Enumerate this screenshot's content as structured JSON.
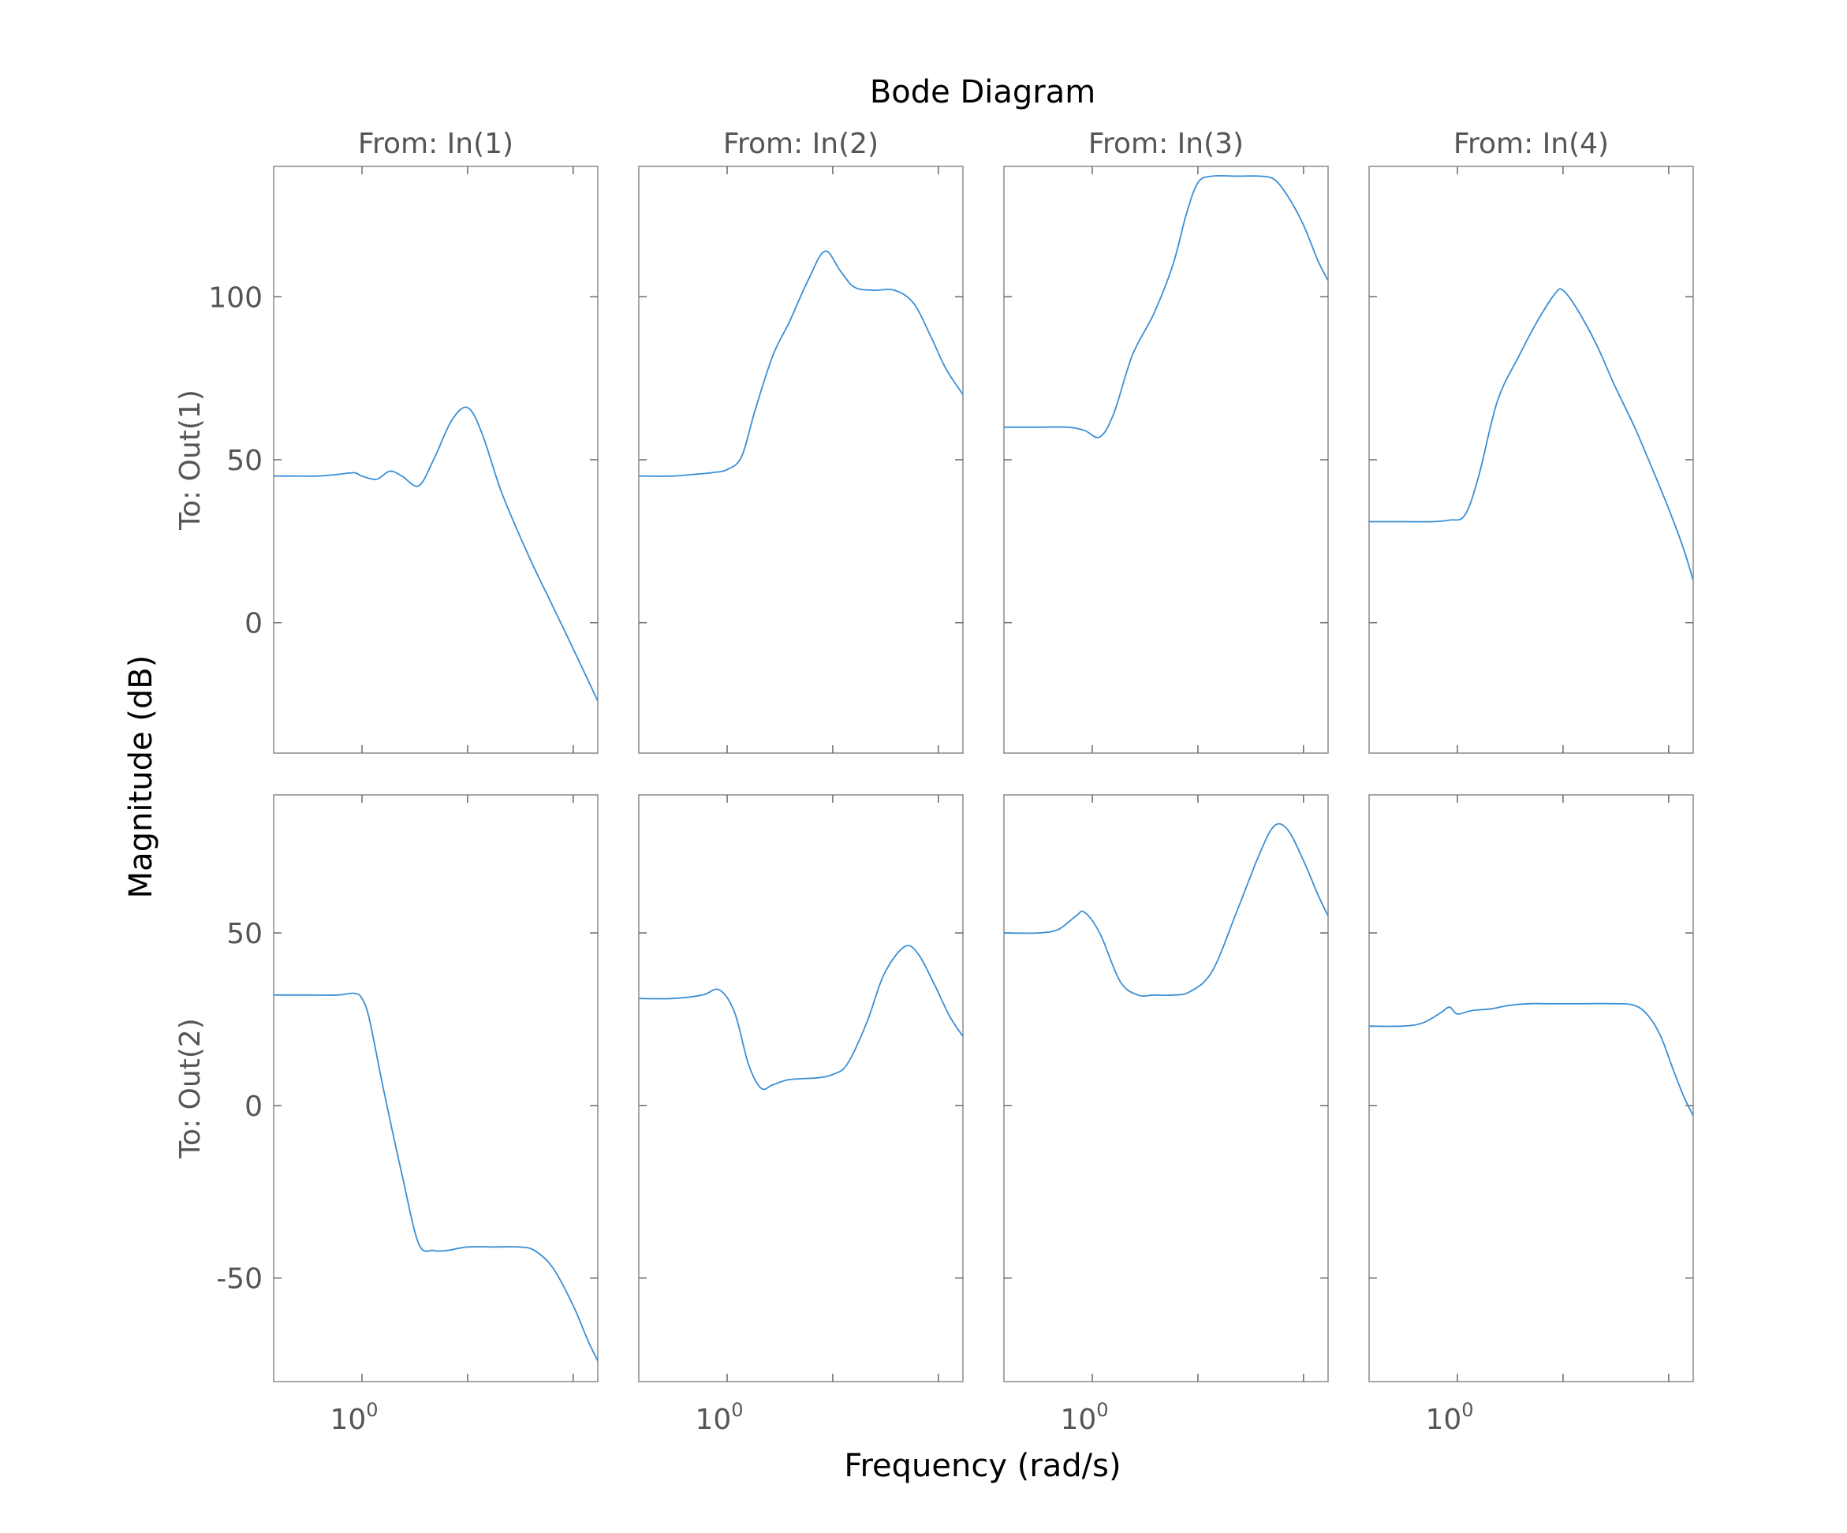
{
  "chart_data": {
    "type": "line",
    "title": "Bode Diagram",
    "xlabel": "Frequency  (rad/s)",
    "ylabel": "Magnitude (dB)",
    "xscale": "log",
    "xlim": [
      0.56,
      4.7
    ],
    "x_tick_label": {
      "base": "10",
      "exponent": "0"
    },
    "line_color": "#3a8fd6",
    "column_titles": [
      "From: In(1)",
      "From: In(2)",
      "From: In(3)",
      "From: In(4)"
    ],
    "row_labels": [
      "To: Out(1)",
      "To: Out(2)"
    ],
    "rows": [
      {
        "ylim": [
          -40,
          140
        ],
        "yticks": [
          0,
          50,
          100
        ],
        "ytick_labels": [
          "0",
          "50",
          "100"
        ],
        "series": [
          {
            "name": "In(1) to Out(1)",
            "x": [
              0.56,
              0.65,
              0.75,
              0.85,
              0.95,
              1.0,
              1.1,
              1.2,
              1.3,
              1.45,
              1.6,
              1.8,
              2.0,
              2.2,
              2.5,
              3.0,
              3.5,
              4.0,
              4.7
            ],
            "y": [
              45,
              45,
              45,
              45.5,
              46,
              45,
              44,
              46.5,
              45,
              42,
              50,
              62,
              66,
              58,
              40,
              20,
              5,
              -8,
              -24
            ]
          },
          {
            "name": "In(2) to Out(1)",
            "x": [
              0.56,
              0.7,
              0.8,
              0.9,
              1.0,
              1.1,
              1.2,
              1.35,
              1.5,
              1.7,
              1.9,
              2.1,
              2.3,
              2.6,
              3.0,
              3.4,
              3.8,
              4.2,
              4.7
            ],
            "y": [
              45,
              45,
              45.5,
              46,
              47,
              51,
              65,
              82,
              92,
              105,
              114,
              108,
              103,
              102,
              102,
              98,
              88,
              78,
              70
            ]
          },
          {
            "name": "In(3) to Out(1)",
            "x": [
              0.56,
              0.7,
              0.85,
              0.95,
              1.05,
              1.15,
              1.3,
              1.5,
              1.7,
              1.85,
              2.0,
              2.2,
              2.6,
              3.0,
              3.3,
              3.6,
              4.0,
              4.4,
              4.7
            ],
            "y": [
              60,
              60,
              60,
              59,
              57,
              64,
              82,
              95,
              110,
              125,
              135,
              137,
              137,
              137,
              136,
              131,
              122,
              111,
              105
            ]
          },
          {
            "name": "In(4) to Out(1)",
            "x": [
              0.56,
              0.7,
              0.85,
              0.95,
              1.05,
              1.15,
              1.3,
              1.5,
              1.7,
              1.9,
              2.0,
              2.2,
              2.5,
              2.8,
              3.2,
              3.6,
              4.0,
              4.4,
              4.7
            ],
            "y": [
              31,
              31,
              31,
              31.5,
              33,
              45,
              68,
              82,
              93,
              101,
              102,
              96,
              85,
              73,
              60,
              47,
              35,
              23,
              13
            ]
          }
        ]
      },
      {
        "ylim": [
          -80,
          90
        ],
        "yticks": [
          -50,
          0,
          50
        ],
        "ytick_labels": [
          "-50",
          "0",
          "50"
        ],
        "series": [
          {
            "name": "In(1) to Out(2)",
            "x": [
              0.56,
              0.7,
              0.85,
              0.95,
              1.0,
              1.05,
              1.15,
              1.3,
              1.45,
              1.6,
              1.75,
              2.0,
              2.4,
              2.8,
              3.1,
              3.5,
              4.0,
              4.4,
              4.7
            ],
            "y": [
              32,
              32,
              32,
              32.5,
              31,
              25,
              5,
              -20,
              -40,
              -42,
              -42,
              -41,
              -41,
              -41,
              -42,
              -47,
              -58,
              -68,
              -74
            ]
          },
          {
            "name": "In(2) to Out(2)",
            "x": [
              0.56,
              0.7,
              0.85,
              0.95,
              1.05,
              1.15,
              1.25,
              1.35,
              1.5,
              1.8,
              2.0,
              2.2,
              2.5,
              2.8,
              3.2,
              3.5,
              3.9,
              4.3,
              4.7
            ],
            "y": [
              31,
              31,
              32,
              33.5,
              27,
              12,
              5,
              6,
              7.5,
              8,
              9,
              12,
              24,
              38,
              46,
              44,
              35,
              26,
              20
            ]
          },
          {
            "name": "In(3) to Out(2)",
            "x": [
              0.56,
              0.7,
              0.8,
              0.9,
              0.95,
              1.05,
              1.2,
              1.35,
              1.5,
              1.7,
              1.9,
              2.2,
              2.6,
              3.0,
              3.3,
              3.6,
              4.0,
              4.4,
              4.7
            ],
            "y": [
              50,
              50,
              51,
              55,
              56,
              50,
              36,
              32,
              32,
              32,
              33,
              39,
              57,
              73,
              81,
              80,
              71,
              61,
              55
            ]
          },
          {
            "name": "In(4) to Out(2)",
            "x": [
              0.56,
              0.7,
              0.8,
              0.9,
              0.95,
              1.0,
              1.1,
              1.25,
              1.4,
              1.6,
              1.8,
              2.2,
              2.8,
              3.2,
              3.5,
              3.8,
              4.1,
              4.4,
              4.7
            ],
            "y": [
              23,
              23,
              24,
              27,
              28.5,
              26.5,
              27.5,
              28,
              29,
              29.5,
              29.5,
              29.5,
              29.5,
              29,
              26,
              20,
              11,
              3,
              -3
            ]
          }
        ]
      }
    ]
  }
}
